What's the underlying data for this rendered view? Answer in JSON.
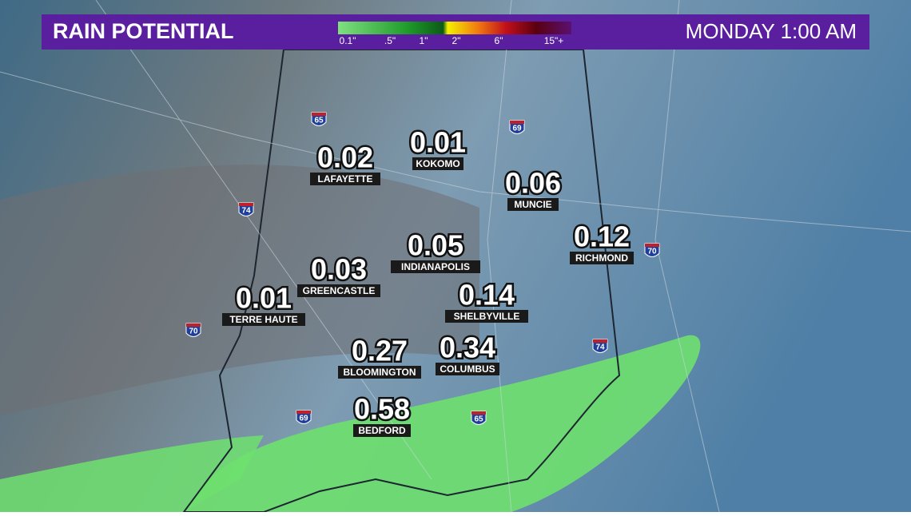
{
  "header": {
    "title": "RAIN POTENTIAL",
    "time": "MONDAY 1:00 AM",
    "legend": [
      "0.1\"",
      ".5\"",
      "1\"",
      "2\"",
      "6\"",
      "15\"+"
    ]
  },
  "cities": [
    {
      "name": "LAFAYETTE",
      "value": 0.02
    },
    {
      "name": "KOKOMO",
      "value": 0.01
    },
    {
      "name": "MUNCIE",
      "value": 0.06
    },
    {
      "name": "INDIANAPOLIS",
      "value": 0.05
    },
    {
      "name": "RICHMOND",
      "value": 0.12
    },
    {
      "name": "GREENCASTLE",
      "value": 0.03
    },
    {
      "name": "TERRE HAUTE",
      "value": 0.01
    },
    {
      "name": "SHELBYVILLE",
      "value": 0.14
    },
    {
      "name": "BLOOMINGTON",
      "value": 0.27
    },
    {
      "name": "COLUMBUS",
      "value": 0.34
    },
    {
      "name": "BEDFORD",
      "value": 0.58
    }
  ],
  "highways": [
    "65",
    "69",
    "74",
    "70",
    "70",
    "74",
    "69",
    "65"
  ]
}
